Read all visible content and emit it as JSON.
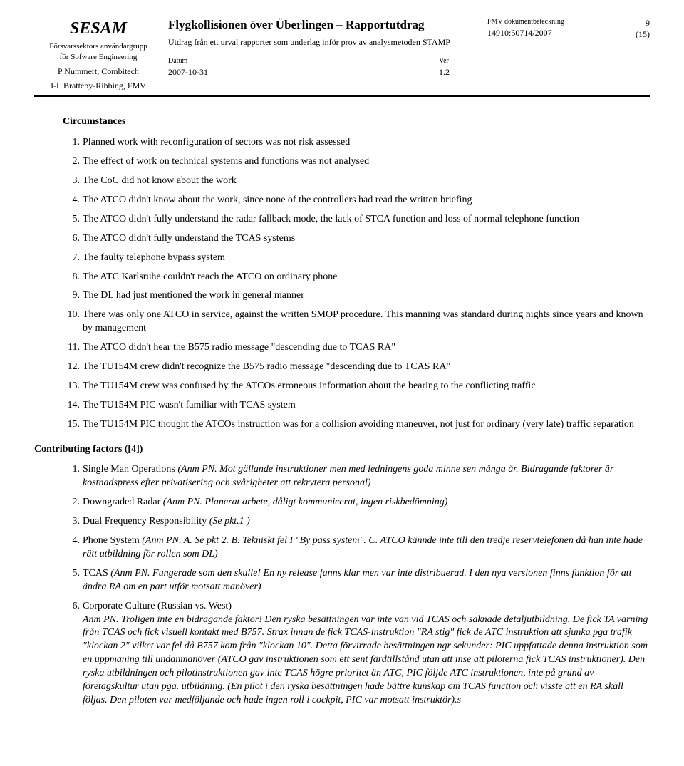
{
  "header": {
    "org": "SESAM",
    "org_sub1": "Försvarssektors användargrupp",
    "org_sub2": "för Sofware Engineering",
    "person1": "P Nummert, Combitech",
    "person2": "I-L Bratteby-Ribbing, FMV",
    "title": "Flygkollisionen över Überlingen – Rapportutdrag",
    "subtitle": "Utdrag från ett urval rapporter som underlag inför prov av analysmetoden STAMP",
    "date_label": "Datum",
    "date": "2007-10-31",
    "ver_label": "Ver",
    "ver": "1.2",
    "fmv_label": "FMV dokumentbeteckning",
    "fmv_num": "14910:50714/2007",
    "page": "9",
    "page_total": "(15)"
  },
  "circumstances": {
    "heading": "Circumstances",
    "items": [
      "Planned work with reconfiguration of sectors was not risk assessed",
      "The effect of work on technical systems and functions was not analysed",
      "The CoC did not know about the work",
      "The ATCO didn't know about the work, since none of the controllers had read the written briefing",
      "The ATCO didn't fully understand the radar fallback mode, the lack of STCA function and loss of normal telephone function",
      "The ATCO didn't fully understand the TCAS systems",
      "The faulty telephone bypass system",
      "The ATC Karlsruhe couldn't reach the ATCO on ordinary phone",
      "The DL had just mentioned the work in general manner",
      "There was only one ATCO in service, against the written SMOP procedure. This manning was standard during nights since years and known by management",
      "The ATCO didn't hear the B575 radio message \"descending due to TCAS RA\"",
      "The TU154M crew didn't recognize the B575 radio message \"descending due to TCAS RA\"",
      "The TU154M crew was confused by the ATCOs erroneous information about the bearing to the conflicting traffic",
      "The TU154M PIC wasn't familiar with TCAS system",
      "The TU154M PIC thought the ATCOs instruction was for a collision avoiding maneuver, not just for ordinary (very late) traffic separation"
    ]
  },
  "factors": {
    "heading": "Contributing factors ([4])",
    "items": [
      {
        "main": "Single Man Operations ",
        "note": "(Anm PN. Mot gällande instruktioner men med ledningens goda minne sen många år. Bidragande faktorer är kostnadspress efter privatisering och svårigheter att rekrytera personal)",
        "after": ""
      },
      {
        "main": "Downgraded Radar ",
        "note": "(Anm PN. Planerat arbete, dåligt kommunicerat, ingen riskbedömning)",
        "after": ""
      },
      {
        "main": "Dual Frequency Responsibility ",
        "note": "(Se pkt.1 )",
        "after": ""
      },
      {
        "main": "Phone System ",
        "note": "(Anm PN. A. Se pkt 2. B. Tekniskt fel I \"By pass system\". C. ATCO kännde inte till den tredje reservtelefonen då han inte hade rätt utbildning för rollen som DL)",
        "after": ""
      },
      {
        "main": "TCAS ",
        "note": "(Anm PN. Fungerade som den skulle! En ny release fanns klar men var inte distribuerad. I den nya versionen finns funktion för att ändra RA om en part utför motsatt manöver)",
        "after": ""
      },
      {
        "main": "Corporate Culture (Russian vs. West)",
        "note": "Anm PN. Troligen inte en bidragande faktor! Den ryska besättningen var inte van vid TCAS och saknade detaljutbildning. De fick TA varning från TCAS och fick visuell kontakt med B757. Strax innan de fick TCAS-instruktion \"RA stig\" fick de ATC instruktion att sjunka pga trafik \"klockan 2\" vilket var fel då B757 kom från \"klockan 10\". Detta förvirrade besättningen ngr sekunder: PIC uppfattade denna instruktion som en uppmaning till undanmanöver (ATCO gav instruktionen som ett sent färdtillstånd utan att inse att piloterna fick TCAS instruktioner). Den ryska utbildningen och pilotinstruktionen gav inte TCAS högre prioritet än ATC, PIC följde ATC instruktionen, inte på grund av företagskultur utan pga. utbildning. (En pilot i den ryska besättningen hade bättre kunskap om TCAS function och visste att en RA skall följas. Den piloten var medföljande och hade ingen roll i cockpit, PIC var motsatt instruktör).s",
        "after": "",
        "block_note": true
      }
    ]
  }
}
